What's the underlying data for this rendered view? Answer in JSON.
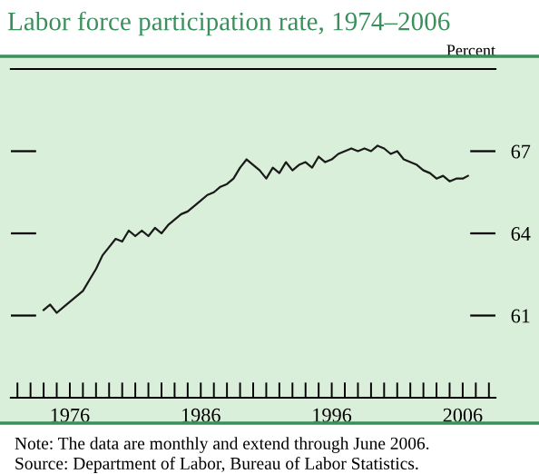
{
  "chart_data": {
    "type": "line",
    "title": "Labor force participation rate, 1974–2006",
    "ylabel": "Percent",
    "annotations": [
      "Note: The data are monthly and extend through June 2006.",
      "Source: Department of Labor, Bureau of Labor Statistics."
    ],
    "x": [
      1974.0,
      1974.5,
      1975.0,
      1975.5,
      1976.0,
      1976.5,
      1977.0,
      1977.5,
      1978.0,
      1978.5,
      1979.0,
      1979.5,
      1980.0,
      1980.5,
      1981.0,
      1981.5,
      1982.0,
      1982.5,
      1983.0,
      1983.5,
      1984.0,
      1984.5,
      1985.0,
      1985.5,
      1986.0,
      1986.5,
      1987.0,
      1987.5,
      1988.0,
      1988.5,
      1989.0,
      1989.5,
      1990.0,
      1990.5,
      1991.0,
      1991.5,
      1992.0,
      1992.5,
      1993.0,
      1993.5,
      1994.0,
      1994.5,
      1995.0,
      1995.5,
      1996.0,
      1996.5,
      1997.0,
      1997.5,
      1998.0,
      1998.5,
      1999.0,
      1999.5,
      2000.0,
      2000.5,
      2001.0,
      2001.5,
      2002.0,
      2002.5,
      2003.0,
      2003.5,
      2004.0,
      2004.5,
      2005.0,
      2005.5,
      2006.0,
      2006.4
    ],
    "series": [
      {
        "color": "#1a1a1a",
        "values": [
          61.2,
          61.4,
          61.1,
          61.3,
          61.5,
          61.7,
          61.9,
          62.3,
          62.7,
          63.2,
          63.5,
          63.8,
          63.7,
          64.1,
          63.9,
          64.1,
          63.9,
          64.2,
          64.0,
          64.3,
          64.5,
          64.7,
          64.8,
          65.0,
          65.2,
          65.4,
          65.5,
          65.7,
          65.8,
          66.0,
          66.4,
          66.7,
          66.5,
          66.3,
          66.0,
          66.4,
          66.2,
          66.6,
          66.3,
          66.5,
          66.6,
          66.4,
          66.8,
          66.6,
          66.7,
          66.9,
          67.0,
          67.1,
          67.0,
          67.1,
          67.0,
          67.2,
          67.1,
          66.9,
          67.0,
          66.7,
          66.6,
          66.5,
          66.3,
          66.2,
          66.0,
          66.1,
          65.9,
          66.0,
          66.0,
          66.1
        ]
      }
    ],
    "xlim": [
      1971.5,
      2008.5
    ],
    "ylim": [
      58,
      70
    ],
    "xticks": [
      {
        "value": 1972,
        "label": null
      },
      {
        "value": 1973,
        "label": null
      },
      {
        "value": 1974,
        "label": null
      },
      {
        "value": 1975,
        "label": null
      },
      1976,
      {
        "value": 1977,
        "label": null
      },
      {
        "value": 1978,
        "label": null
      },
      {
        "value": 1979,
        "label": null
      },
      {
        "value": 1980,
        "label": null
      },
      {
        "value": 1981,
        "label": null
      },
      {
        "value": 1982,
        "label": null
      },
      {
        "value": 1983,
        "label": null
      },
      {
        "value": 1984,
        "label": null
      },
      {
        "value": 1985,
        "label": null
      },
      1986,
      {
        "value": 1987,
        "label": null
      },
      {
        "value": 1988,
        "label": null
      },
      {
        "value": 1989,
        "label": null
      },
      {
        "value": 1990,
        "label": null
      },
      {
        "value": 1991,
        "label": null
      },
      {
        "value": 1992,
        "label": null
      },
      {
        "value": 1993,
        "label": null
      },
      {
        "value": 1994,
        "label": null
      },
      {
        "value": 1995,
        "label": null
      },
      1996,
      {
        "value": 1997,
        "label": null
      },
      {
        "value": 1998,
        "label": null
      },
      {
        "value": 1999,
        "label": null
      },
      {
        "value": 2000,
        "label": null
      },
      {
        "value": 2001,
        "label": null
      },
      {
        "value": 2002,
        "label": null
      },
      {
        "value": 2003,
        "label": null
      },
      {
        "value": 2004,
        "label": null
      },
      {
        "value": 2005,
        "label": null
      },
      2006,
      {
        "value": 2007,
        "label": null
      },
      {
        "value": 2008,
        "label": null
      }
    ],
    "yticks": [
      61,
      64,
      67
    ],
    "grid": false,
    "legend": false,
    "marker": "none",
    "line_style": "solid"
  }
}
